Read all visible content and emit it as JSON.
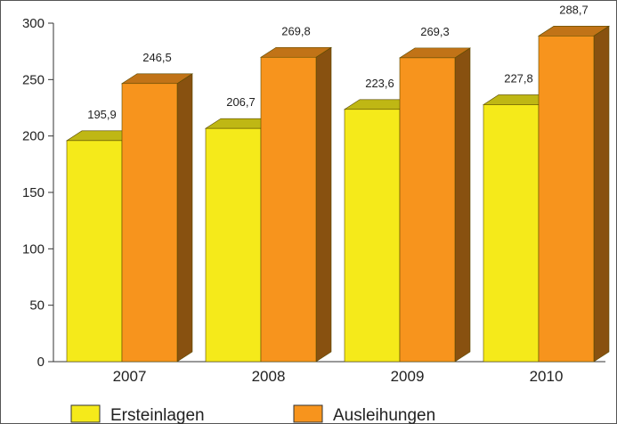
{
  "chart_data": {
    "type": "bar",
    "categories": [
      "2007",
      "2008",
      "2009",
      "2010"
    ],
    "series": [
      {
        "name": "Ersteinlagen",
        "values": [
          195.9,
          206.7,
          223.6,
          227.8
        ],
        "labels": [
          "195,9",
          "206,7",
          "223,6",
          "227,8"
        ],
        "color": "#f5ea1a"
      },
      {
        "name": "Ausleihungen",
        "values": [
          246.5,
          269.8,
          269.3,
          288.7
        ],
        "labels": [
          "246,5",
          "269,8",
          "269,3",
          "288,7"
        ],
        "color": "#f7941d"
      }
    ],
    "yticks": [
      "0",
      "50",
      "100",
      "150",
      "200",
      "250",
      "300"
    ],
    "ylim": [
      0,
      300
    ],
    "title": "",
    "xlabel": "",
    "ylabel": "",
    "grid": false,
    "legend": "bottom",
    "style": "3d"
  }
}
